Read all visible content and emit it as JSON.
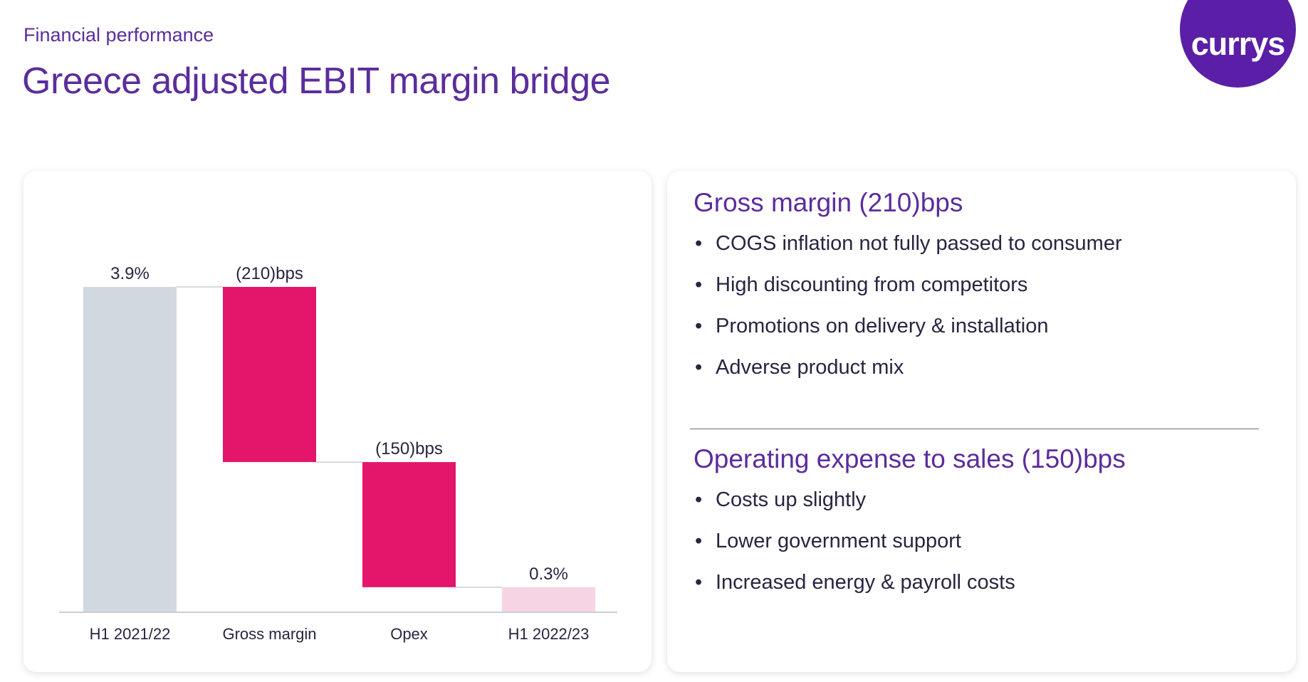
{
  "header": {
    "eyebrow": "Financial performance",
    "title": "Greece adjusted EBIT margin bridge"
  },
  "logo": {
    "text": "currys"
  },
  "colors": {
    "brand_purple": "#5b2d9c",
    "logo_purple": "#5a1fa6",
    "base_bar": "#d0d9e0",
    "decrease_bar": "#e3166b",
    "end_bar": "#f6d4e4"
  },
  "chart_data": {
    "type": "bar",
    "subtype": "waterfall",
    "unit": "%",
    "categories": [
      "H1 2021/22",
      "Gross margin",
      "Opex",
      "H1 2022/23"
    ],
    "steps": [
      {
        "category": "H1 2021/22",
        "kind": "total",
        "value": 3.9,
        "label": "3.9%",
        "color": "#d0d9e0"
      },
      {
        "category": "Gross margin",
        "kind": "delta",
        "value": -2.1,
        "label": "(210)bps",
        "color": "#e3166b"
      },
      {
        "category": "Opex",
        "kind": "delta",
        "value": -1.5,
        "label": "(150)bps",
        "color": "#e3166b"
      },
      {
        "category": "H1 2022/23",
        "kind": "total",
        "value": 0.3,
        "label": "0.3%",
        "color": "#f6d4e4"
      }
    ],
    "ylim": [
      0,
      3.9
    ],
    "grid": false,
    "legend": "none",
    "connectors": true
  },
  "commentary": {
    "gross_margin": {
      "heading": "Gross margin (210)bps",
      "bullets": [
        "COGS inflation not fully passed to consumer",
        "High discounting from competitors",
        "Promotions on delivery & installation",
        "Adverse product mix"
      ]
    },
    "opex": {
      "heading": "Operating expense to sales (150)bps",
      "bullets": [
        "Costs up slightly",
        "Lower government support",
        "Increased energy & payroll costs"
      ]
    }
  }
}
